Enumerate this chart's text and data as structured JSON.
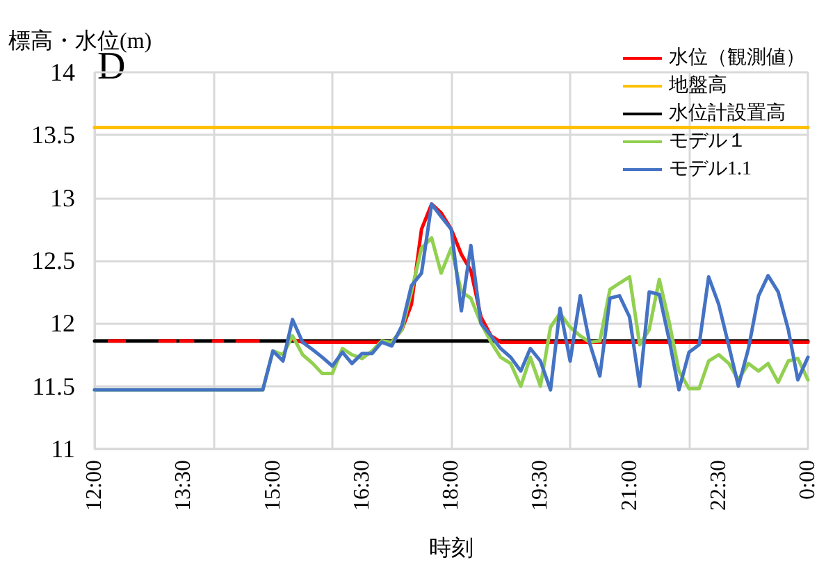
{
  "chart_data": {
    "type": "line",
    "xlabel": "時刻",
    "ylabel": "標高・水位(m)",
    "annotations": [
      "D"
    ],
    "xlim": [
      12,
      24
    ],
    "xticks": [
      {
        "value": 12,
        "label": "12:00"
      },
      {
        "value": 13.5,
        "label": "13:30"
      },
      {
        "value": 15,
        "label": "15:00"
      },
      {
        "value": 16.5,
        "label": "16:30"
      },
      {
        "value": 18,
        "label": "18:00"
      },
      {
        "value": 19.5,
        "label": "19:30"
      },
      {
        "value": 21,
        "label": "21:00"
      },
      {
        "value": 22.5,
        "label": "22:30"
      },
      {
        "value": 24,
        "label": "0:00"
      }
    ],
    "ylim": [
      11,
      14
    ],
    "yticks": [
      11,
      11.5,
      12,
      12.5,
      13,
      13.5,
      14
    ],
    "grid": true,
    "legend": "top right",
    "marker": "none",
    "line_style": "solid",
    "series": [
      {
        "name": "水位（観測値）",
        "color": "#ff0000",
        "x": [
          12.25,
          12.5,
          12.6,
          13.1,
          13.35,
          13.4,
          13.45,
          13.65,
          13.8,
          14.0,
          14.15,
          14.2,
          14.4,
          14.75,
          14.8,
          15.33,
          15.5,
          15.67,
          15.83,
          16.0,
          16.17,
          16.33,
          16.5,
          16.67,
          16.83,
          17.0,
          17.17,
          17.33,
          17.5,
          17.67,
          17.83,
          18.0,
          18.17,
          18.33,
          18.5,
          18.67,
          18.83,
          19.0,
          19.5,
          20.0,
          20.5,
          21.0,
          21.5,
          22.0,
          22.5,
          23.0,
          23.5,
          24.0
        ],
        "values": [
          11.86,
          11.86,
          null,
          11.86,
          11.86,
          null,
          11.86,
          11.86,
          null,
          11.86,
          11.86,
          null,
          11.86,
          11.86,
          null,
          11.87,
          11.85,
          11.85,
          11.85,
          11.85,
          11.85,
          11.85,
          11.85,
          11.85,
          11.85,
          11.85,
          11.95,
          12.15,
          12.75,
          12.95,
          12.88,
          12.75,
          12.55,
          12.42,
          12.05,
          11.9,
          11.85,
          11.85,
          11.85,
          11.85,
          11.85,
          11.85,
          11.85,
          11.85,
          11.85,
          11.85,
          11.85,
          11.85
        ]
      },
      {
        "name": "地盤高",
        "color": "#ffc000",
        "x": [
          12,
          24
        ],
        "values": [
          13.56,
          13.56
        ]
      },
      {
        "name": "水位計設置高",
        "color": "#000000",
        "x": [
          12,
          24
        ],
        "values": [
          11.86,
          11.86
        ]
      },
      {
        "name": "モデル１",
        "color": "#92d050",
        "x": [
          12,
          14.83,
          15.0,
          15.17,
          15.33,
          15.5,
          15.67,
          15.83,
          16.0,
          16.17,
          16.33,
          16.5,
          16.67,
          16.83,
          17.0,
          17.17,
          17.33,
          17.5,
          17.67,
          17.83,
          18.0,
          18.17,
          18.33,
          18.5,
          18.67,
          18.83,
          19.0,
          19.17,
          19.33,
          19.5,
          19.67,
          19.83,
          20.0,
          20.17,
          20.33,
          20.5,
          20.67,
          20.83,
          21.0,
          21.17,
          21.33,
          21.5,
          21.67,
          21.83,
          22.0,
          22.17,
          22.33,
          22.5,
          22.67,
          22.83,
          23.0,
          23.17,
          23.33,
          23.5,
          23.67,
          23.83,
          24.0
        ],
        "values": [
          11.47,
          11.47,
          11.78,
          11.75,
          11.9,
          11.75,
          11.68,
          11.6,
          11.6,
          11.8,
          11.75,
          11.72,
          11.78,
          11.86,
          11.85,
          11.95,
          12.25,
          12.6,
          12.68,
          12.4,
          12.6,
          12.25,
          12.2,
          12.0,
          11.85,
          11.73,
          11.68,
          11.5,
          11.73,
          11.5,
          11.97,
          12.08,
          11.97,
          11.9,
          11.85,
          11.86,
          12.27,
          12.32,
          12.37,
          11.83,
          11.95,
          12.35,
          12.0,
          11.62,
          11.48,
          11.48,
          11.7,
          11.75,
          11.68,
          11.55,
          11.68,
          11.62,
          11.68,
          11.53,
          11.7,
          11.72,
          11.55
        ]
      },
      {
        "name": "モデル1.1",
        "color": "#4472c4",
        "x": [
          12,
          14.83,
          15.0,
          15.17,
          15.33,
          15.5,
          15.67,
          15.83,
          16.0,
          16.17,
          16.33,
          16.5,
          16.67,
          16.83,
          17.0,
          17.17,
          17.33,
          17.5,
          17.67,
          17.83,
          18.0,
          18.17,
          18.33,
          18.5,
          18.67,
          18.83,
          19.0,
          19.17,
          19.33,
          19.5,
          19.67,
          19.83,
          20.0,
          20.17,
          20.33,
          20.5,
          20.67,
          20.83,
          21.0,
          21.17,
          21.33,
          21.5,
          21.67,
          21.83,
          22.0,
          22.17,
          22.33,
          22.5,
          22.67,
          22.83,
          23.0,
          23.17,
          23.33,
          23.5,
          23.67,
          23.83,
          24.0
        ],
        "values": [
          11.47,
          11.47,
          11.78,
          11.7,
          12.03,
          11.85,
          11.79,
          11.73,
          11.66,
          11.77,
          11.68,
          11.76,
          11.76,
          11.85,
          11.82,
          11.98,
          12.3,
          12.4,
          12.95,
          12.85,
          12.75,
          12.1,
          12.62,
          12.0,
          11.9,
          11.8,
          11.73,
          11.62,
          11.8,
          11.7,
          11.47,
          12.12,
          11.7,
          12.22,
          11.84,
          11.58,
          12.2,
          12.22,
          12.05,
          11.5,
          12.25,
          12.23,
          11.86,
          11.47,
          11.77,
          11.83,
          12.37,
          12.15,
          11.82,
          11.5,
          11.8,
          12.22,
          12.38,
          12.25,
          11.95,
          11.55,
          11.73
        ]
      }
    ]
  }
}
